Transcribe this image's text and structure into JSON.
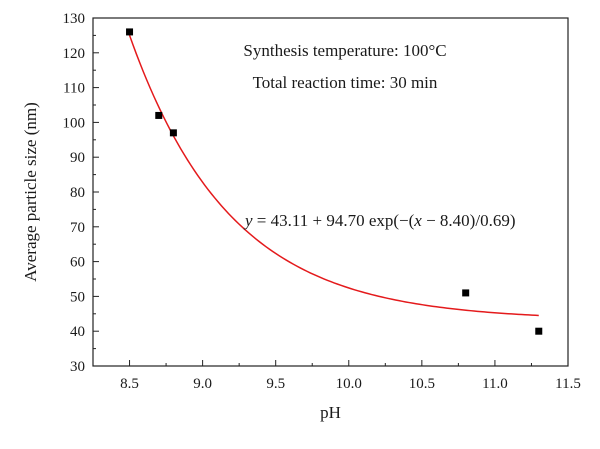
{
  "chart_data": {
    "type": "scatter",
    "xlabel": "pH",
    "ylabel": "Average particle size (nm)",
    "xlim": [
      8.25,
      11.5
    ],
    "ylim": [
      30,
      130
    ],
    "xticks": [
      "8.5",
      "9.0",
      "9.5",
      "10.0",
      "10.5",
      "11.0",
      "11.5"
    ],
    "yticks": [
      "30",
      "40",
      "50",
      "60",
      "70",
      "80",
      "90",
      "100",
      "110",
      "120",
      "130"
    ],
    "grid": false,
    "annotations": {
      "line1": "Synthesis temperature: 100°C",
      "line2": "Total reaction time: 30 min"
    },
    "equation": {
      "y": "y",
      "mid": " = 43.11 + 94.70 exp(−(",
      "x": "x",
      "tail": " − 8.40)/0.69)"
    },
    "series": [
      {
        "type": "scatter",
        "color": "#000000",
        "x": [
          8.5,
          8.7,
          8.8,
          10.8,
          11.3
        ],
        "y": [
          126,
          102,
          97,
          51,
          40
        ]
      },
      {
        "type": "fit",
        "color": "#e41a1c",
        "model": "y = 43.11 + 94.70*exp(-(x-8.40)/0.69)",
        "params": {
          "y0": 43.11,
          "A": 94.7,
          "x0": 8.4,
          "t": 0.69
        },
        "x_range": [
          8.5,
          11.3
        ]
      }
    ]
  }
}
